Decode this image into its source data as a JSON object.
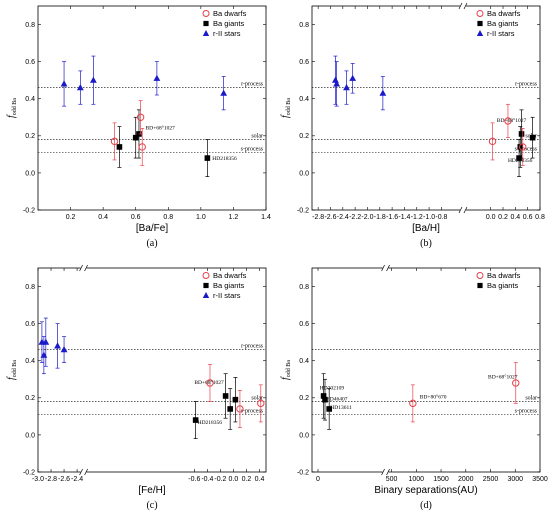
{
  "legend": [
    {
      "key": "dwarfs",
      "label": "Ba dwarfs",
      "color": "#e8404a"
    },
    {
      "key": "giants",
      "label": "Ba giants",
      "color": "#000000"
    },
    {
      "key": "rII",
      "label": "r-II stars",
      "color": "#1a1ac8"
    }
  ],
  "y_label_main": "f",
  "y_label_sub": "odd Ba",
  "chart_data": [
    {
      "type": "scatter",
      "caption": "(a)",
      "xlabel": "[Ba/Fe]",
      "xlim": [
        0.0,
        1.4
      ],
      "xticks": [
        0.2,
        0.4,
        0.6,
        0.8,
        1.0,
        1.2,
        1.4
      ],
      "ylim": [
        -0.2,
        0.9
      ],
      "yticks": [
        -0.2,
        0.0,
        0.2,
        0.4,
        0.6,
        0.8
      ],
      "break_x": null,
      "legend": true,
      "ref_lines": [
        {
          "y": 0.46,
          "label": "r-process"
        },
        {
          "y": 0.18,
          "label": "solar"
        },
        {
          "y": 0.11,
          "label": "s-process"
        }
      ],
      "series": [
        {
          "key": "rII",
          "points": [
            [
              0.16,
              0.48,
              0.12
            ],
            [
              0.26,
              0.46,
              0.09
            ],
            [
              0.34,
              0.5,
              0.13
            ],
            [
              0.73,
              0.51,
              0.09
            ],
            [
              1.14,
              0.43,
              0.09
            ]
          ]
        },
        {
          "key": "giants",
          "points": [
            [
              0.5,
              0.14,
              0.11
            ],
            [
              0.6,
              0.19,
              0.11
            ],
            [
              0.62,
              0.21,
              0.13
            ],
            [
              1.04,
              0.08,
              0.1
            ]
          ]
        },
        {
          "key": "dwarfs",
          "points": [
            [
              0.47,
              0.17,
              0.1
            ],
            [
              0.63,
              0.3,
              0.09
            ],
            [
              0.64,
              0.14,
              0.1
            ]
          ]
        }
      ],
      "annotations": [
        {
          "text": "BD+68°1027",
          "x": 0.66,
          "y": 0.235
        },
        {
          "text": "HD218356",
          "x": 1.07,
          "y": 0.07
        }
      ]
    },
    {
      "type": "scatter",
      "caption": "(b)",
      "xlabel": "[Ba/H]",
      "xlim": [
        -2.9,
        0.8
      ],
      "xticks": [
        -2.8,
        -2.6,
        -2.4,
        -2.2,
        -2.0,
        -1.8,
        -1.6,
        -1.4,
        -1.2,
        -1.0,
        -0.8,
        0.0,
        0.2,
        0.4,
        0.6,
        0.8
      ],
      "ylim": [
        -0.2,
        0.9
      ],
      "yticks": [
        -0.2,
        0.0,
        0.2,
        0.4,
        0.6,
        0.8
      ],
      "break_x": -0.45,
      "legend": true,
      "ref_lines": [
        {
          "y": 0.46,
          "label": "r-process"
        },
        {
          "y": 0.18,
          "label": "solar"
        },
        {
          "y": 0.11,
          "label": "s-process"
        }
      ],
      "series": [
        {
          "key": "rII",
          "points": [
            [
              -2.52,
              0.5,
              0.13
            ],
            [
              -2.5,
              0.48,
              0.12
            ],
            [
              -2.34,
              0.46,
              0.09
            ],
            [
              -2.24,
              0.51,
              0.08
            ],
            [
              -1.75,
              0.43,
              0.09
            ]
          ]
        },
        {
          "key": "giants",
          "points": [
            [
              0.46,
              0.08,
              0.1
            ],
            [
              0.48,
              0.14,
              0.11
            ],
            [
              0.5,
              0.21,
              0.13
            ],
            [
              0.68,
              0.19,
              0.11
            ]
          ]
        },
        {
          "key": "dwarfs",
          "points": [
            [
              0.03,
              0.17,
              0.1
            ],
            [
              0.28,
              0.28,
              0.09
            ],
            [
              0.52,
              0.14,
              0.1
            ]
          ]
        }
      ],
      "annotations": [
        {
          "text": "BD+68°1027",
          "x": 0.1,
          "y": 0.275
        },
        {
          "text": "HD218356",
          "x": 0.28,
          "y": 0.06
        }
      ]
    },
    {
      "type": "scatter",
      "caption": "(c)",
      "xlabel": "[Fe/H]",
      "xlim": [
        -3.0,
        0.5
      ],
      "xticks": [
        -3.0,
        -2.8,
        -2.6,
        -2.4,
        -0.6,
        -0.4,
        -0.2,
        0.0,
        0.2,
        0.4
      ],
      "ylim": [
        -0.2,
        0.9
      ],
      "yticks": [
        -0.2,
        0.0,
        0.2,
        0.4,
        0.6,
        0.8
      ],
      "break_x": -2.3,
      "legend": true,
      "ref_lines": [
        {
          "y": 0.46,
          "label": "r-process"
        },
        {
          "y": 0.18,
          "label": "solar"
        },
        {
          "y": 0.11,
          "label": "s-process"
        }
      ],
      "series": [
        {
          "key": "rII",
          "points": [
            [
              -2.94,
              0.5,
              0.11
            ],
            [
              -2.91,
              0.43,
              0.1
            ],
            [
              -2.88,
              0.5,
              0.13
            ],
            [
              -2.7,
              0.48,
              0.12
            ],
            [
              -2.6,
              0.46,
              0.07
            ]
          ]
        },
        {
          "key": "giants",
          "points": [
            [
              -0.58,
              0.08,
              0.1
            ],
            [
              -0.12,
              0.21,
              0.12
            ],
            [
              -0.05,
              0.14,
              0.11
            ],
            [
              0.03,
              0.19,
              0.12
            ]
          ]
        },
        {
          "key": "dwarfs",
          "points": [
            [
              -0.36,
              0.28,
              0.1
            ],
            [
              0.1,
              0.14,
              0.1
            ],
            [
              0.42,
              0.17,
              0.1
            ]
          ]
        }
      ],
      "annotations": [
        {
          "text": "BD+68°1027",
          "x": -0.6,
          "y": 0.275
        },
        {
          "text": "HD218356",
          "x": -0.55,
          "y": 0.06
        }
      ]
    },
    {
      "type": "scatter",
      "caption": "(d)",
      "xlabel": "Binary separations(AU)",
      "xlim": [
        0,
        3500
      ],
      "xticks": [
        0,
        500,
        1000,
        1500,
        2000,
        2500,
        3000,
        3500
      ],
      "ylim": [
        -0.2,
        0.9
      ],
      "yticks": [
        -0.2,
        0.0,
        0.2,
        0.4,
        0.6,
        0.8
      ],
      "break_x": 22,
      "legend": true,
      "ref_lines": [
        {
          "y": 0.46,
          "label": ""
        },
        {
          "y": 0.18,
          "label": "solar"
        },
        {
          "y": 0.11,
          "label": "s-process"
        }
      ],
      "series": [
        {
          "key": "giants",
          "points": [
            [
              2.0,
              0.21,
              0.12
            ],
            [
              2.5,
              0.19,
              0.11
            ],
            [
              4.0,
              0.14,
              0.11
            ]
          ]
        },
        {
          "key": "dwarfs",
          "points": [
            [
              930,
              0.17,
              0.1
            ],
            [
              3010,
              0.28,
              0.11
            ]
          ]
        }
      ],
      "annotations": [
        {
          "text": "HD202109",
          "x": 0.6,
          "y": 0.245
        },
        {
          "text": "HD46407",
          "x": 2.8,
          "y": 0.185
        },
        {
          "text": "HD13611",
          "x": 4.4,
          "y": 0.14
        },
        {
          "text": "BD+80°670",
          "x": 1070,
          "y": 0.195
        },
        {
          "text": "BD+68°1027",
          "x": 2450,
          "y": 0.305
        }
      ]
    }
  ]
}
